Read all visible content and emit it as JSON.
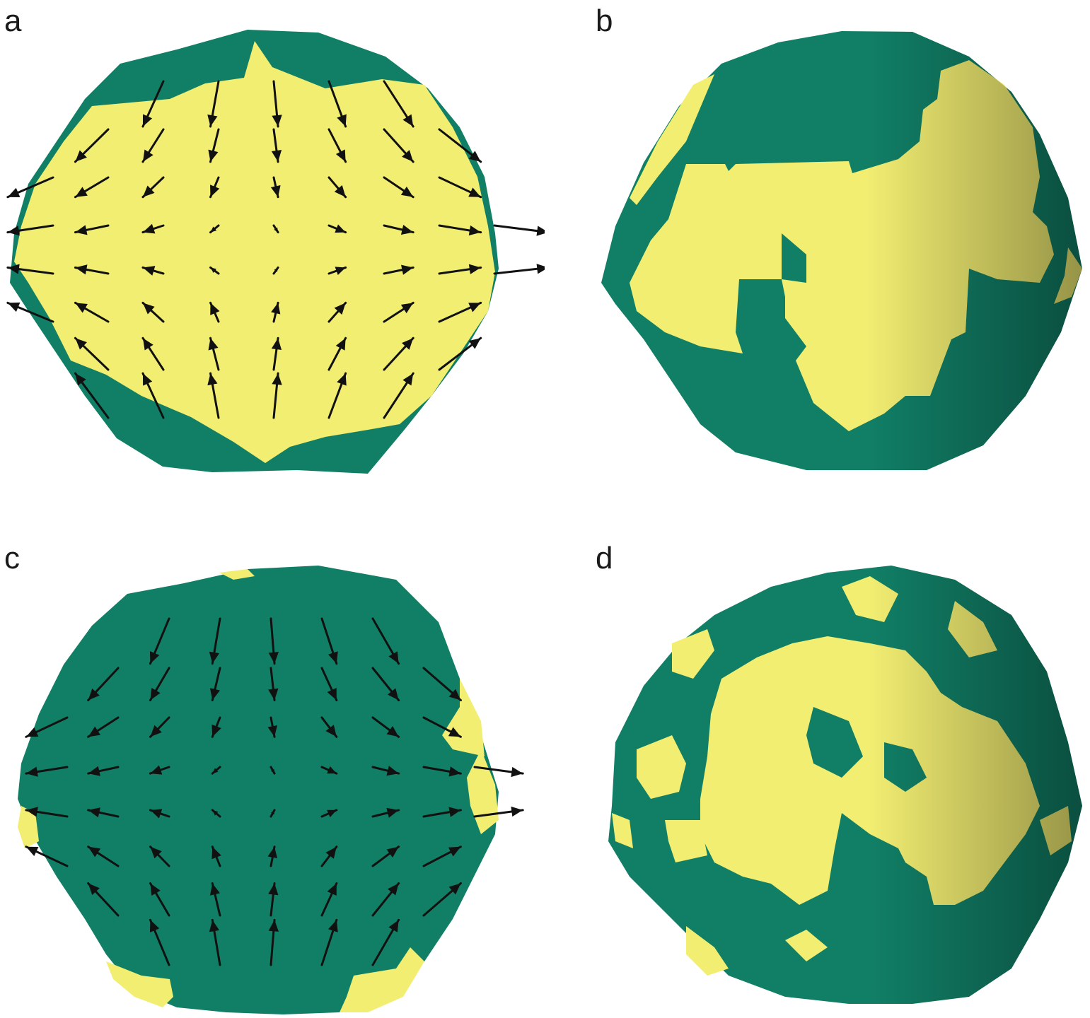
{
  "figure": {
    "panels": [
      {
        "id": "a",
        "label": "a",
        "view": "front",
        "has_arrows": true
      },
      {
        "id": "b",
        "label": "b",
        "view": "side",
        "has_arrows": false
      },
      {
        "id": "c",
        "label": "c",
        "view": "front",
        "has_arrows": true
      },
      {
        "id": "d",
        "label": "d",
        "view": "side",
        "has_arrows": false
      }
    ],
    "colors": {
      "green": "#117f66",
      "yellow": "#f2ee72",
      "dark_green": "#0b5c4a",
      "dark_yellow": "#a7a24a",
      "arrow": "#111111"
    }
  }
}
